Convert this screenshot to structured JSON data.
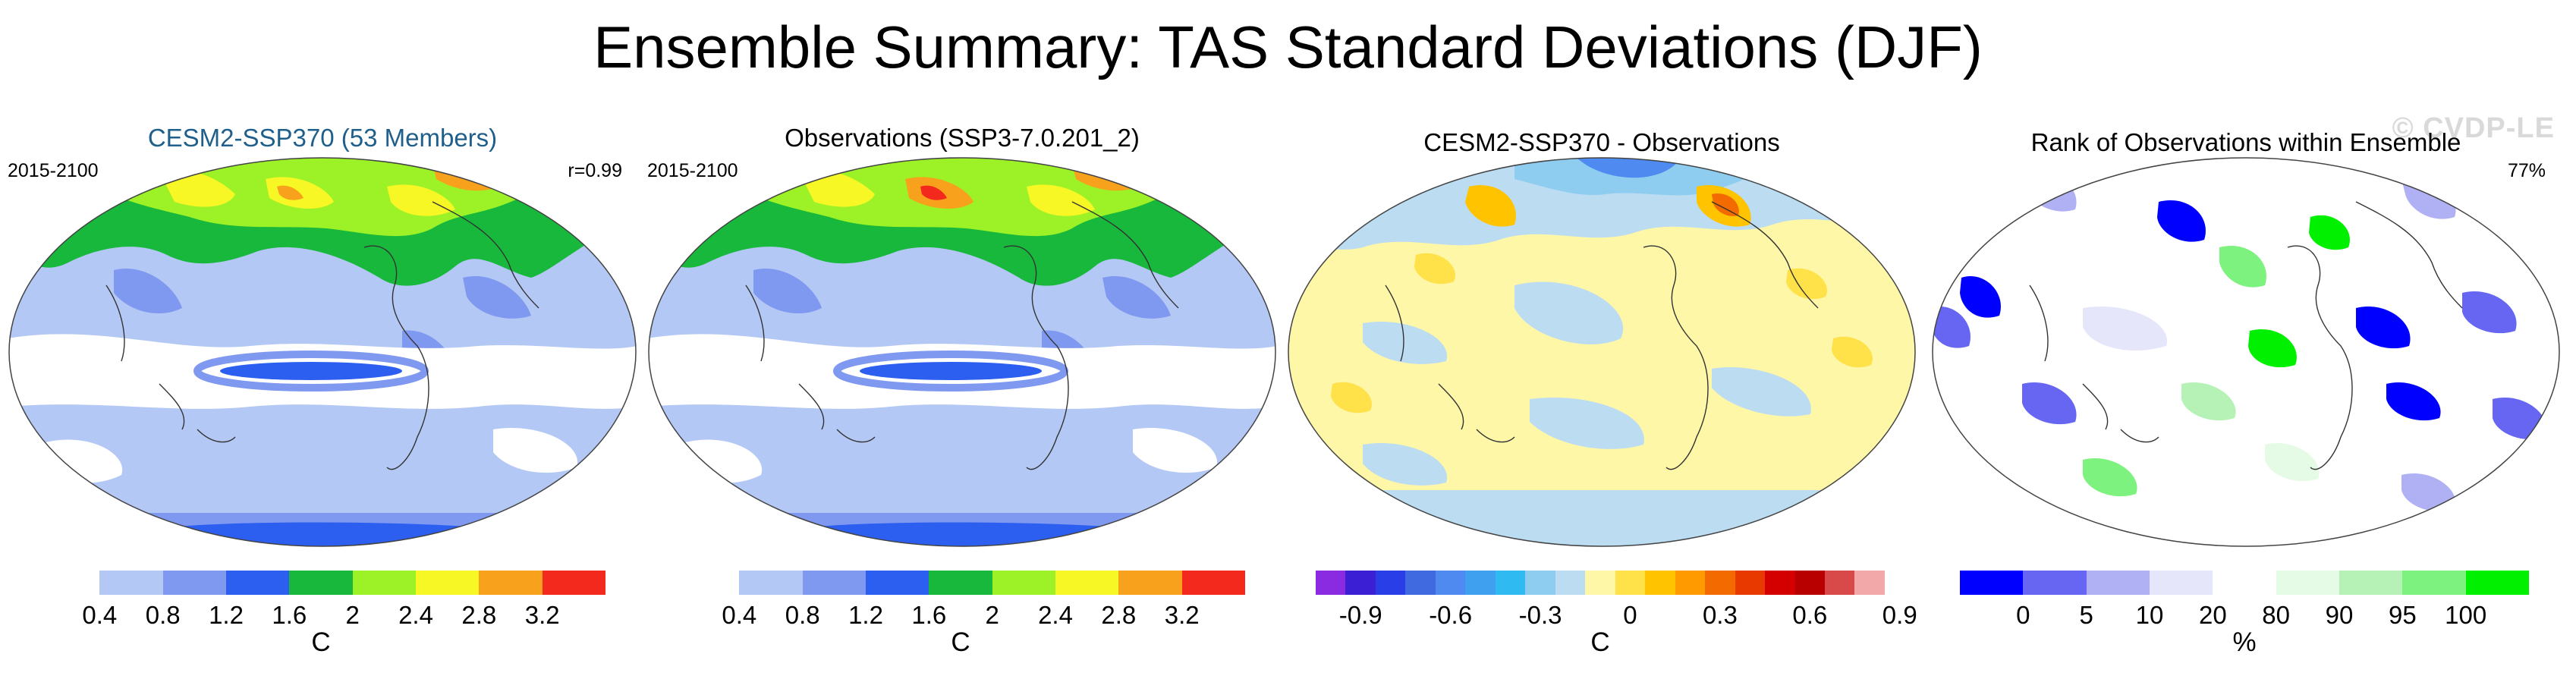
{
  "title": "Ensemble Summary: TAS Standard Deviations (DJF)",
  "watermark": "© CVDP-LE",
  "panels": [
    {
      "title": "CESM2-SSP370 (53 Members)",
      "title_color": "#1f5f8b",
      "left_label": "2015-2100",
      "right_label": "r=0.99",
      "colorbar": {
        "colors": [
          "#ffffff",
          "#b4c8f5",
          "#7f98f0",
          "#2c5ff0",
          "#17b83b",
          "#9cf226",
          "#f7f725",
          "#f7a11c",
          "#f2291c"
        ],
        "tick_labels": [
          "0.4",
          "0.8",
          "1.2",
          "1.6",
          "2",
          "2.4",
          "2.8",
          "3.2"
        ],
        "unit": "C"
      }
    },
    {
      "title": "Observations (SSP3-7.0.201_2)",
      "title_color": "#000000",
      "left_label": "2015-2100",
      "right_label": "",
      "colorbar": {
        "colors": [
          "#ffffff",
          "#b4c8f5",
          "#7f98f0",
          "#2c5ff0",
          "#17b83b",
          "#9cf226",
          "#f7f725",
          "#f7a11c",
          "#f2291c"
        ],
        "tick_labels": [
          "0.4",
          "0.8",
          "1.2",
          "1.6",
          "2",
          "2.4",
          "2.8",
          "3.2"
        ],
        "unit": "C"
      }
    },
    {
      "title": "CESM2-SSP370 - Observations",
      "title_color": "#000000",
      "left_label": "",
      "right_label": "",
      "colorbar": {
        "colors": [
          "#8a2be2",
          "#3a1fd4",
          "#2a3ee8",
          "#3f6ae0",
          "#4f8af0",
          "#3fa0f0",
          "#2fbaf2",
          "#8fcdf0",
          "#bcdcf2",
          "#fff7a8",
          "#ffe14a",
          "#ffc300",
          "#ff9a00",
          "#f26a00",
          "#e83a00",
          "#d40000",
          "#b80000",
          "#d84a4a",
          "#f2a8a8"
        ],
        "tick_labels": [
          "-0.9",
          "-0.6",
          "-0.3",
          "0",
          "0.3",
          "0.6",
          "0.9"
        ],
        "unit": "C"
      }
    },
    {
      "title": "Rank of Observations within Ensemble",
      "title_color": "#000000",
      "left_label": "",
      "right_label": "77%",
      "colorbar": {
        "colors": [
          "#0000ff",
          "#6666f2",
          "#b0b0f5",
          "#e6e6fb",
          "#ffffff",
          "#e6fbe6",
          "#b6f2b6",
          "#7ef27e",
          "#00f000"
        ],
        "tick_labels": [
          "0",
          "5",
          "10",
          "20",
          "80",
          "90",
          "95",
          "100"
        ],
        "unit": "%"
      }
    }
  ]
}
